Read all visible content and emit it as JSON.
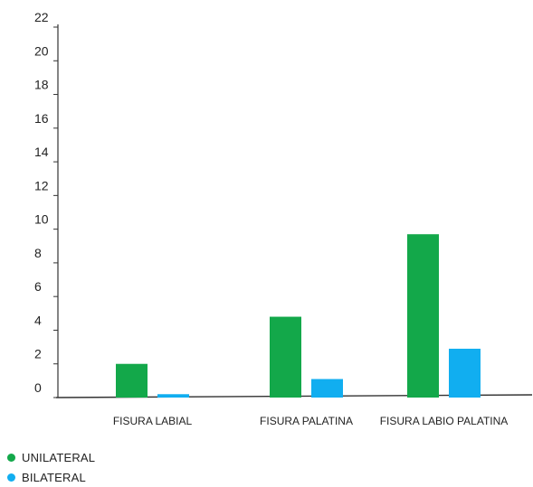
{
  "chart_data": {
    "type": "bar",
    "categories": [
      "FISURA LABIAL",
      "FISURA PALATINA",
      "FISURA LABIO PALATINA"
    ],
    "series": [
      {
        "name": "UNILATERAL",
        "color": "#13a84a",
        "values": [
          2,
          4.8,
          9.7
        ]
      },
      {
        "name": "BILATERAL",
        "color": "#11aef0",
        "values": [
          0.2,
          1.1,
          2.9
        ]
      }
    ],
    "yticks": [
      0,
      2,
      4,
      6,
      8,
      10,
      12,
      14,
      16,
      18,
      20,
      22
    ],
    "ylim": [
      0,
      22
    ],
    "grid": false,
    "legend_position": "bottom-left"
  }
}
